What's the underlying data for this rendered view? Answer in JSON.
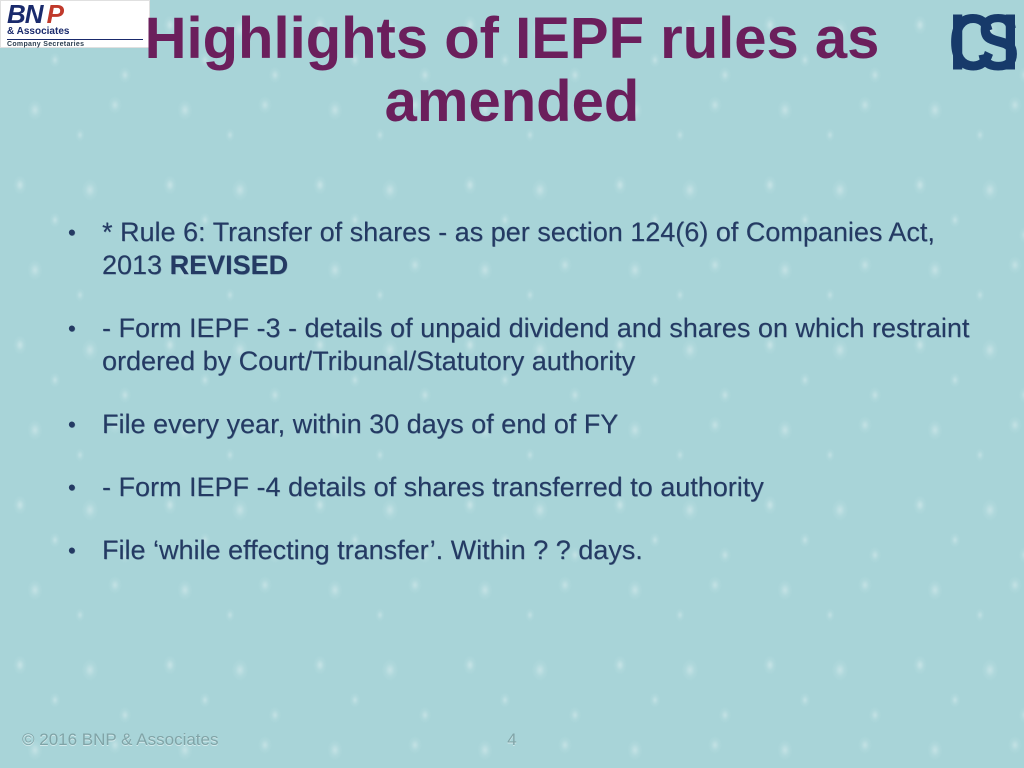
{
  "slide": {
    "title": "Highlights of IEPF rules as amended",
    "title_color": "#6b1f5c",
    "title_fontsize": 58,
    "bullet_color": "#243a63",
    "bullet_fontsize": 27,
    "background_color": "#a8d4d8",
    "bullets": [
      {
        "prefix": "* Rule 6: Transfer of shares - as per section 124(6) of Companies Act, 2013 ",
        "bold_suffix": "REVISED"
      },
      {
        "text": "- Form IEPF -3 - details of unpaid dividend and shares on which restraint ordered by Court/Tribunal/Statutory authority"
      },
      {
        "text": "File every year, within 30 days of end of FY"
      },
      {
        "text": "- Form IEPF -4 details of shares transferred to authority"
      },
      {
        "text": "File ‘while effecting transfer’. Within ? ? days."
      }
    ]
  },
  "logos": {
    "left": {
      "line1_a": "BN",
      "line1_b": "P",
      "assoc": "& Associates",
      "sub": "Company Secretaries",
      "primary_color": "#1a2a6c",
      "accent_color": "#c0392b"
    },
    "right": {
      "glyph": "ICSI",
      "color": "#173a6a"
    }
  },
  "footer": {
    "copyright": "© 2016 BNP & Associates",
    "page_number": "4",
    "color": "#80a4a7",
    "fontsize": 17
  }
}
